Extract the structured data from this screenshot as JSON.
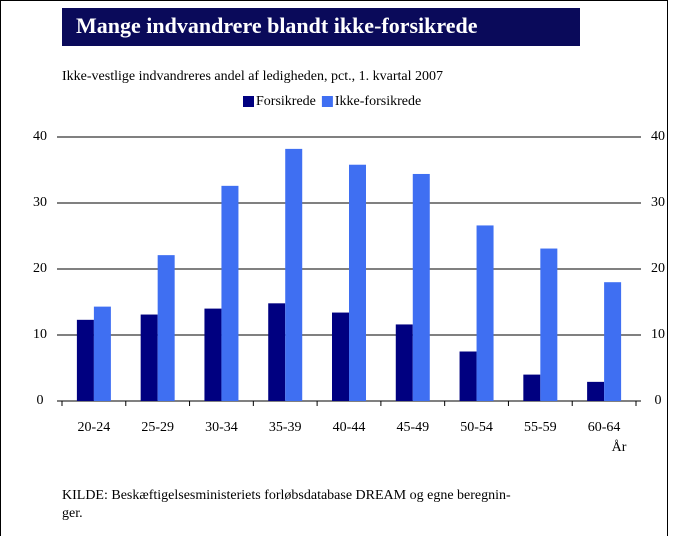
{
  "chart_data": {
    "type": "bar",
    "title": "Mange indvandrere blandt ikke-forsikrede",
    "subtitle": "Ikke-vestlige indvandreres andel af ledigheden, pct., 1. kvartal 2007",
    "x_label": "År",
    "source": [
      "KILDE: Beskæftigelsesministeriets forløbsdatabase DREAM og egne beregnin-",
      "ger."
    ],
    "categories": [
      "20-24",
      "25-29",
      "30-34",
      "35-39",
      "40-44",
      "45-49",
      "50-54",
      "55-59",
      "60-64"
    ],
    "series": [
      {
        "name": "Forsikrede",
        "color": "#000080",
        "values": [
          12.3,
          13.1,
          14.0,
          14.8,
          13.4,
          11.6,
          7.5,
          4.0,
          2.9
        ]
      },
      {
        "name": "Ikke-forsikrede",
        "color": "#3f6ff2",
        "values": [
          14.3,
          22.1,
          32.6,
          38.2,
          35.8,
          34.4,
          26.6,
          23.1,
          18.0
        ]
      }
    ],
    "ylim": [
      0,
      40
    ],
    "yticks": [
      0,
      10,
      20,
      30,
      40
    ],
    "y2lim": [
      0,
      40
    ],
    "y2ticks": [
      0,
      10,
      20,
      30,
      40
    ],
    "grid": true,
    "legend": "top"
  }
}
